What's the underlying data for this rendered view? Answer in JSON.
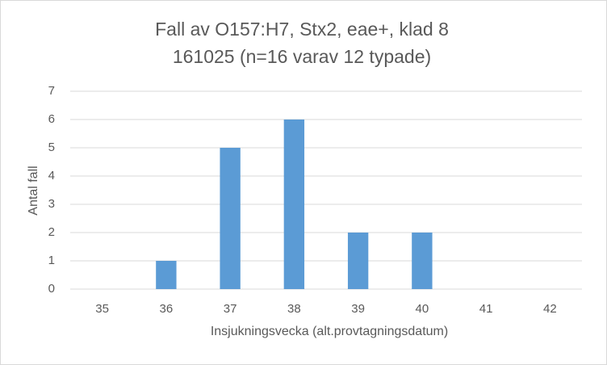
{
  "chart_data": {
    "type": "bar",
    "title": "Fall av O157:H7, Stx2, eae+, klad 8",
    "subtitle": "161025 (n=16 varav 12 typade)",
    "x_label": "Insjukningsvecka (alt.provtagningsdatum)",
    "y_label": "Antal fall",
    "categories": [
      "35",
      "36",
      "37",
      "38",
      "39",
      "40",
      "41",
      "42"
    ],
    "values": [
      0,
      1,
      5,
      6,
      2,
      2,
      0,
      0
    ],
    "color": "#5b9bd5",
    "ylim": [
      0,
      7
    ],
    "yticks": [
      0,
      1,
      2,
      3,
      4,
      5,
      6,
      7
    ],
    "grid": true
  }
}
